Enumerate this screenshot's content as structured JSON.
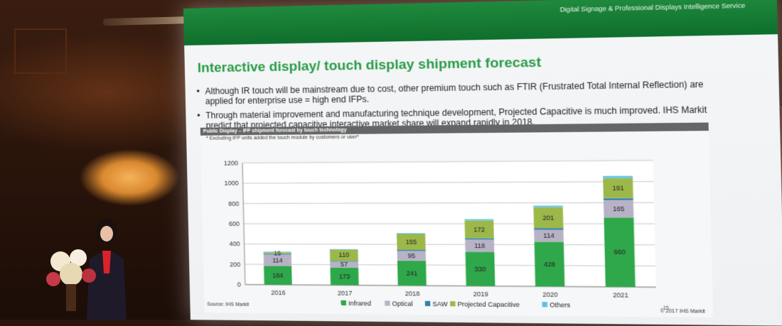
{
  "banner": "Digital Signage & Professional Displays Intelligence Service",
  "slide_title": "Interactive display/ touch display shipment forecast",
  "bullets": [
    "Although IR touch will be mainstream due to cost, other premium touch such as FTIR (Frustrated Total Internal Reflection) are applied for enterprise use = high end IFPs.",
    "Through material improvement and manufacturing technique development, Projected Capacitive is much improved. IHS Markit predict that projected capacitive interactive market share will expand rapidly in 2018."
  ],
  "chart_header": "Public Display – IFP shipment forecast by touch technology",
  "chart_note": "* Excluding IFP units added the touch module by customers or user*",
  "source": "Source: IHS Markit",
  "copyright": "© 2017 IHS Markit",
  "page_number": "15",
  "colors": {
    "banner": "#1f8a3d",
    "title": "#2a9c47",
    "infrared": "#2ea84a",
    "optical": "#b7b2c6",
    "saw": "#2f7fb0",
    "projected_capacitive": "#9cb84a",
    "others": "#5cc3e6"
  },
  "chart_data": {
    "type": "bar",
    "stacked": true,
    "categories": [
      "2016",
      "2017",
      "2018",
      "2019",
      "2020",
      "2021"
    ],
    "series": [
      {
        "name": "Infrared",
        "values": [
          184,
          173,
          241,
          330,
          428,
          660
        ],
        "labels": [
          "184",
          "173",
          "241",
          "330",
          "428",
          "660"
        ],
        "color": "#2ea84a"
      },
      {
        "name": "Optical",
        "values": [
          114,
          57,
          95,
          118,
          114,
          165
        ],
        "labels": [
          "114",
          "57",
          "95",
          "118",
          "114",
          "165"
        ],
        "color": "#b7b2c6"
      },
      {
        "name": "SAW",
        "values": [
          8,
          8,
          10,
          12,
          15,
          18
        ],
        "labels": [
          "",
          "",
          "",
          "",
          "",
          ""
        ],
        "color": "#2f7fb0"
      },
      {
        "name": "Projected Capacitive",
        "values": [
          15,
          110,
          155,
          172,
          201,
          191
        ],
        "labels": [
          "15",
          "110",
          "155",
          "172",
          "201",
          "191"
        ],
        "color": "#9cb84a"
      },
      {
        "name": "Others",
        "values": [
          5,
          5,
          8,
          12,
          15,
          20
        ],
        "labels": [
          "",
          "",
          "",
          "",
          "",
          ""
        ],
        "color": "#5cc3e6"
      }
    ],
    "ylim": [
      0,
      1200
    ],
    "yticks": [
      "0",
      "200",
      "400",
      "600",
      "800",
      "1000",
      "1200"
    ],
    "ytick_values": [
      0,
      200,
      400,
      600,
      800,
      1000,
      1200
    ],
    "grid": true,
    "legend_position": "bottom"
  }
}
